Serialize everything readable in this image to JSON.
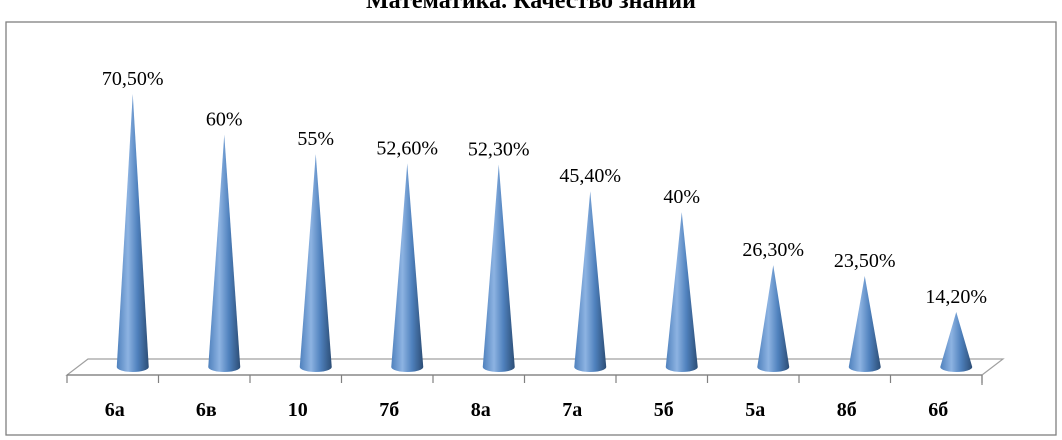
{
  "chart_data": {
    "type": "bar",
    "bar_shape": "cone",
    "title": "Математика. Качество знаний",
    "categories": [
      "6а",
      "6в",
      "10",
      "7б",
      "8а",
      "7а",
      "5б",
      "5а",
      "8б",
      "6б"
    ],
    "values": [
      70.5,
      60,
      55,
      52.6,
      52.3,
      45.4,
      40,
      26.3,
      23.5,
      14.2
    ],
    "data_labels": [
      "70,50%",
      "60%",
      "55%",
      "52,60%",
      "52,30%",
      "45,40%",
      "40%",
      "26,30%",
      "23,50%",
      "14,20%"
    ],
    "xlabel": "",
    "ylabel": "",
    "ylim": [
      0,
      70.5
    ],
    "grid": false,
    "legend": "none",
    "colors": {
      "cone_light": "#8db3e2",
      "cone_mid": "#4f81bd",
      "cone_dark": "#2c4d75"
    }
  }
}
